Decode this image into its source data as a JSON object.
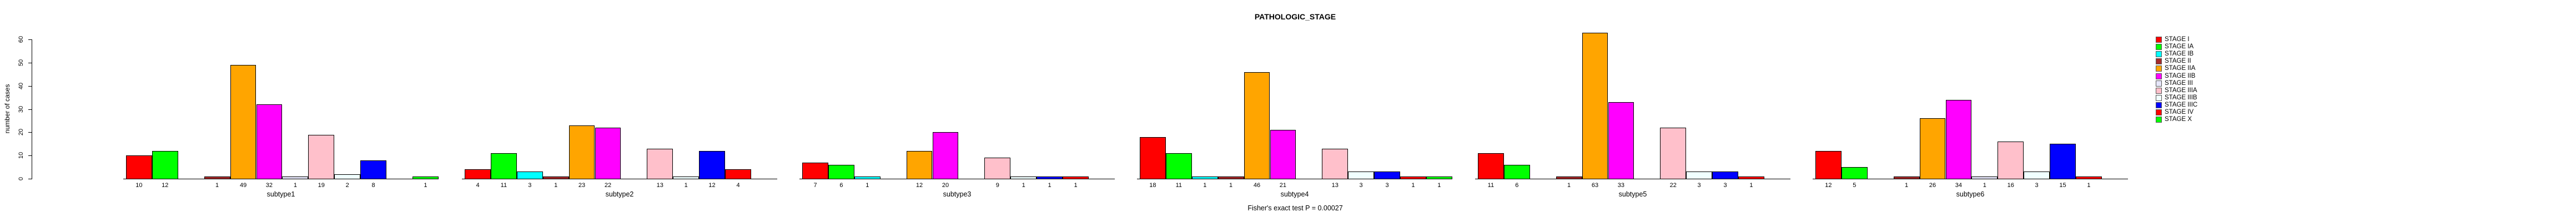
{
  "chart_data": {
    "type": "bar",
    "title": "PATHOLOGIC_STAGE",
    "ylabel": "number of cases",
    "caption": "Fisher's exact test P = 0.00027",
    "ylim": [
      0,
      60
    ],
    "yticks": [
      0,
      10,
      20,
      30,
      40,
      50,
      60
    ],
    "grid": false,
    "legend_position": "right",
    "categories": [
      "STAGE I",
      "STAGE IA",
      "STAGE IB",
      "STAGE II",
      "STAGE IIA",
      "STAGE IIB",
      "STAGE III",
      "STAGE IIIA",
      "STAGE IIIB",
      "STAGE IIIC",
      "STAGE IV",
      "STAGE X"
    ],
    "colors": [
      "#FF0000",
      "#00FF00",
      "#00FFFF",
      "#A52A2A",
      "#FFA500",
      "#FF00FF",
      "#E6E6FA",
      "#FFC0CB",
      "#F0FFFF",
      "#0000FF",
      "#FF0000",
      "#00FF00"
    ],
    "series": [
      {
        "name": "subtype1",
        "values": [
          10,
          12,
          0,
          1,
          49,
          32,
          1,
          19,
          2,
          8,
          0,
          1
        ]
      },
      {
        "name": "subtype2",
        "values": [
          4,
          11,
          3,
          1,
          23,
          22,
          0,
          13,
          1,
          12,
          4,
          0
        ]
      },
      {
        "name": "subtype3",
        "values": [
          7,
          6,
          1,
          0,
          12,
          20,
          0,
          9,
          1,
          1,
          1,
          0
        ]
      },
      {
        "name": "subtype4",
        "values": [
          18,
          11,
          1,
          1,
          46,
          21,
          0,
          13,
          3,
          3,
          1,
          1
        ]
      },
      {
        "name": "subtype5",
        "values": [
          11,
          6,
          0,
          1,
          63,
          33,
          0,
          22,
          3,
          3,
          1,
          0
        ]
      },
      {
        "name": "subtype6",
        "values": [
          12,
          5,
          0,
          1,
          26,
          34,
          1,
          16,
          3,
          15,
          1,
          0
        ]
      }
    ]
  }
}
